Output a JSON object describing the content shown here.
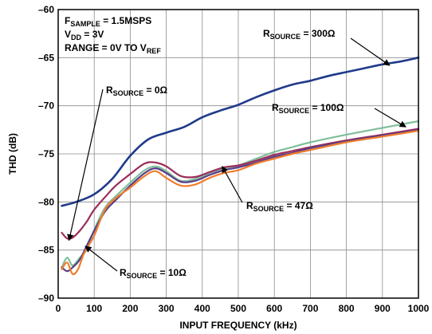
{
  "chart_data": {
    "type": "line",
    "xlabel": "INPUT FREQUENCY (kHz)",
    "ylabel": "THD (dB)",
    "xlim": [
      0,
      1000
    ],
    "ylim": [
      -90,
      -60
    ],
    "x_ticks": [
      "0",
      "100",
      "200",
      "300",
      "400",
      "500",
      "600",
      "700",
      "800",
      "900",
      "1000"
    ],
    "y_ticks": [
      "–60",
      "–65",
      "–70",
      "–75",
      "–80",
      "–85",
      "–90"
    ],
    "grid": true,
    "conditions": [
      {
        "main": "F",
        "sub": "SAMPLE",
        "rest": " = 1.5MSPS"
      },
      {
        "main": "V",
        "sub": "DD",
        "rest": " = 3V"
      },
      {
        "main": "RANGE = 0V TO V",
        "sub": "REF",
        "rest": ""
      }
    ],
    "annotations": {
      "r300": {
        "main": "R",
        "sub": "SOURCE",
        "rest": " = 300Ω"
      },
      "r100": {
        "main": "R",
        "sub": "SOURCE",
        "rest": " = 100Ω"
      },
      "r0": {
        "main": "R",
        "sub": "SOURCE",
        "rest": " = 0Ω"
      },
      "r47": {
        "main": "R",
        "sub": "SOURCE",
        "rest": " = 47Ω"
      },
      "r10": {
        "main": "R",
        "sub": "SOURCE",
        "rest": " = 10Ω"
      }
    },
    "series": [
      {
        "name": "R SOURCE = 300Ω",
        "color": "#1f3a8a",
        "x": [
          10,
          50,
          100,
          150,
          200,
          250,
          300,
          350,
          400,
          450,
          500,
          550,
          600,
          650,
          700,
          750,
          800,
          850,
          900,
          950,
          1000
        ],
        "y": [
          -80.4,
          -80.0,
          -79.2,
          -77.6,
          -75.2,
          -73.5,
          -72.8,
          -72.2,
          -71.2,
          -70.5,
          -69.9,
          -69.1,
          -68.4,
          -67.8,
          -67.4,
          -66.9,
          -66.5,
          -66.1,
          -65.7,
          -65.4,
          -65.0
        ]
      },
      {
        "name": "R SOURCE = 100Ω",
        "color": "#7fbf9a",
        "x": [
          10,
          25,
          40,
          60,
          80,
          100,
          130,
          160,
          200,
          240,
          270,
          300,
          340,
          380,
          420,
          460,
          500,
          550,
          600,
          650,
          700,
          800,
          900,
          1000
        ],
        "y": [
          -86.8,
          -85.8,
          -86.6,
          -85.8,
          -84.9,
          -82.9,
          -80.6,
          -79.4,
          -78.0,
          -76.7,
          -76.3,
          -76.8,
          -77.8,
          -77.6,
          -77.0,
          -76.5,
          -76.2,
          -75.5,
          -74.8,
          -74.3,
          -73.8,
          -73.0,
          -72.3,
          -71.6
        ]
      },
      {
        "name": "R SOURCE = 0Ω",
        "color": "#9b2d5a",
        "x": [
          10,
          25,
          40,
          60,
          80,
          100,
          130,
          160,
          200,
          240,
          270,
          300,
          340,
          380,
          420,
          460,
          500,
          550,
          600,
          650,
          700,
          800,
          900,
          1000
        ],
        "y": [
          -83.2,
          -83.8,
          -83.7,
          -83.0,
          -82.0,
          -80.8,
          -79.5,
          -78.3,
          -77.1,
          -76.0,
          -75.9,
          -76.3,
          -77.3,
          -77.4,
          -76.9,
          -76.4,
          -76.2,
          -75.7,
          -75.1,
          -74.7,
          -74.3,
          -73.6,
          -73.0,
          -72.4
        ]
      },
      {
        "name": "R SOURCE = 47Ω",
        "color": "#5a3c8a",
        "x": [
          10,
          25,
          40,
          60,
          80,
          100,
          130,
          160,
          200,
          240,
          270,
          300,
          340,
          380,
          420,
          460,
          500,
          550,
          600,
          650,
          700,
          800,
          900,
          1000
        ],
        "y": [
          -86.8,
          -87.2,
          -86.8,
          -86.0,
          -84.5,
          -83.0,
          -81.0,
          -79.8,
          -78.3,
          -77.0,
          -76.5,
          -77.0,
          -77.9,
          -77.8,
          -77.2,
          -76.7,
          -76.4,
          -75.9,
          -75.3,
          -74.9,
          -74.4,
          -73.7,
          -73.1,
          -72.5
        ]
      },
      {
        "name": "R SOURCE = 10Ω",
        "color": "#f07d2a",
        "x": [
          10,
          25,
          40,
          55,
          70,
          85,
          100,
          130,
          160,
          200,
          240,
          270,
          300,
          340,
          380,
          420,
          460,
          500,
          550,
          600,
          650,
          700,
          800,
          900,
          1000
        ],
        "y": [
          -87.0,
          -86.3,
          -87.5,
          -87.0,
          -85.5,
          -84.5,
          -83.5,
          -80.8,
          -79.6,
          -78.5,
          -77.3,
          -76.8,
          -77.5,
          -78.3,
          -78.2,
          -77.5,
          -77.0,
          -76.7,
          -76.0,
          -75.5,
          -75.0,
          -74.6,
          -73.8,
          -73.2,
          -72.6
        ]
      }
    ]
  }
}
